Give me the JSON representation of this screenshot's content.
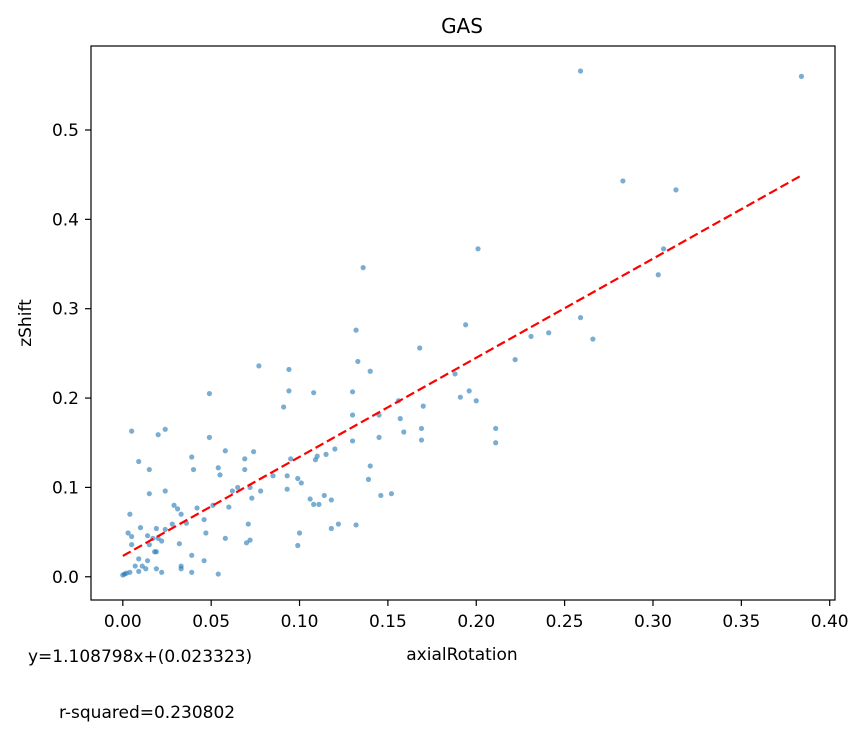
{
  "chart_data": {
    "type": "scatter",
    "title": "GAS",
    "xlabel": "axialRotation",
    "ylabel": "zShift",
    "xlim": [
      -0.018,
      0.403
    ],
    "ylim": [
      -0.026,
      0.594
    ],
    "xticks": [
      0.0,
      0.05,
      0.1,
      0.15,
      0.2,
      0.25,
      0.3,
      0.35,
      0.4
    ],
    "xtick_labels": [
      "0.00",
      "0.05",
      "0.10",
      "0.15",
      "0.20",
      "0.25",
      "0.30",
      "0.35",
      "0.40"
    ],
    "yticks": [
      0.0,
      0.1,
      0.2,
      0.3,
      0.4,
      0.5
    ],
    "ytick_labels": [
      "0.0",
      "0.1",
      "0.2",
      "0.3",
      "0.4",
      "0.5"
    ],
    "grid": false,
    "point_color": "#1f77b4",
    "fit_color": "#ff0000",
    "fit": {
      "slope": 1.108798,
      "intercept": 0.023323,
      "x_range": [
        0.0,
        0.384
      ],
      "equation": "y=1.108798x+(0.023323)",
      "r_squared": "r-squared=0.230802"
    },
    "points": [
      [
        0.259,
        0.566
      ],
      [
        0.384,
        0.56
      ],
      [
        0.283,
        0.443
      ],
      [
        0.313,
        0.433
      ],
      [
        0.201,
        0.367
      ],
      [
        0.306,
        0.367
      ],
      [
        0.136,
        0.346
      ],
      [
        0.303,
        0.338
      ],
      [
        0.194,
        0.282
      ],
      [
        0.132,
        0.276
      ],
      [
        0.259,
        0.29
      ],
      [
        0.266,
        0.266
      ],
      [
        0.231,
        0.269
      ],
      [
        0.241,
        0.273
      ],
      [
        0.168,
        0.256
      ],
      [
        0.222,
        0.243
      ],
      [
        0.133,
        0.241
      ],
      [
        0.077,
        0.236
      ],
      [
        0.094,
        0.232
      ],
      [
        0.14,
        0.23
      ],
      [
        0.188,
        0.227
      ],
      [
        0.049,
        0.205
      ],
      [
        0.094,
        0.208
      ],
      [
        0.108,
        0.206
      ],
      [
        0.13,
        0.207
      ],
      [
        0.196,
        0.208
      ],
      [
        0.191,
        0.201
      ],
      [
        0.2,
        0.197
      ],
      [
        0.156,
        0.197
      ],
      [
        0.091,
        0.19
      ],
      [
        0.17,
        0.191
      ],
      [
        0.145,
        0.181
      ],
      [
        0.13,
        0.181
      ],
      [
        0.157,
        0.177
      ],
      [
        0.024,
        0.165
      ],
      [
        0.005,
        0.163
      ],
      [
        0.02,
        0.159
      ],
      [
        0.049,
        0.156
      ],
      [
        0.169,
        0.166
      ],
      [
        0.159,
        0.162
      ],
      [
        0.211,
        0.166
      ],
      [
        0.13,
        0.152
      ],
      [
        0.145,
        0.156
      ],
      [
        0.169,
        0.153
      ],
      [
        0.211,
        0.15
      ],
      [
        0.058,
        0.141
      ],
      [
        0.074,
        0.14
      ],
      [
        0.12,
        0.143
      ],
      [
        0.039,
        0.134
      ],
      [
        0.009,
        0.129
      ],
      [
        0.069,
        0.132
      ],
      [
        0.095,
        0.132
      ],
      [
        0.11,
        0.135
      ],
      [
        0.115,
        0.137
      ],
      [
        0.109,
        0.131
      ],
      [
        0.04,
        0.12
      ],
      [
        0.015,
        0.12
      ],
      [
        0.054,
        0.122
      ],
      [
        0.069,
        0.12
      ],
      [
        0.14,
        0.124
      ],
      [
        0.055,
        0.114
      ],
      [
        0.085,
        0.113
      ],
      [
        0.099,
        0.11
      ],
      [
        0.093,
        0.113
      ],
      [
        0.139,
        0.109
      ],
      [
        0.065,
        0.1
      ],
      [
        0.072,
        0.1
      ],
      [
        0.078,
        0.096
      ],
      [
        0.093,
        0.098
      ],
      [
        0.101,
        0.105
      ],
      [
        0.062,
        0.096
      ],
      [
        0.015,
        0.093
      ],
      [
        0.024,
        0.096
      ],
      [
        0.106,
        0.087
      ],
      [
        0.118,
        0.086
      ],
      [
        0.146,
        0.091
      ],
      [
        0.152,
        0.093
      ],
      [
        0.029,
        0.08
      ],
      [
        0.042,
        0.077
      ],
      [
        0.051,
        0.08
      ],
      [
        0.073,
        0.088
      ],
      [
        0.108,
        0.081
      ],
      [
        0.111,
        0.081
      ],
      [
        0.114,
        0.091
      ],
      [
        0.004,
        0.07
      ],
      [
        0.031,
        0.076
      ],
      [
        0.033,
        0.07
      ],
      [
        0.06,
        0.078
      ],
      [
        0.046,
        0.064
      ],
      [
        0.01,
        0.055
      ],
      [
        0.019,
        0.054
      ],
      [
        0.024,
        0.053
      ],
      [
        0.028,
        0.059
      ],
      [
        0.036,
        0.06
      ],
      [
        0.071,
        0.059
      ],
      [
        0.122,
        0.059
      ],
      [
        0.118,
        0.054
      ],
      [
        0.132,
        0.058
      ],
      [
        0.1,
        0.049
      ],
      [
        0.003,
        0.049
      ],
      [
        0.005,
        0.045
      ],
      [
        0.014,
        0.046
      ],
      [
        0.017,
        0.043
      ],
      [
        0.02,
        0.043
      ],
      [
        0.022,
        0.04
      ],
      [
        0.032,
        0.037
      ],
      [
        0.047,
        0.049
      ],
      [
        0.058,
        0.043
      ],
      [
        0.07,
        0.038
      ],
      [
        0.072,
        0.041
      ],
      [
        0.005,
        0.036
      ],
      [
        0.015,
        0.036
      ],
      [
        0.018,
        0.028
      ],
      [
        0.019,
        0.028
      ],
      [
        0.039,
        0.024
      ],
      [
        0.099,
        0.035
      ],
      [
        0.009,
        0.02
      ],
      [
        0.014,
        0.018
      ],
      [
        0.046,
        0.018
      ],
      [
        0.011,
        0.012
      ],
      [
        0.007,
        0.012
      ],
      [
        0.033,
        0.012
      ],
      [
        0.033,
        0.009
      ],
      [
        0.019,
        0.009
      ],
      [
        0.002,
        0.004
      ],
      [
        0.004,
        0.005
      ],
      [
        0.009,
        0.006
      ],
      [
        0.013,
        0.009
      ],
      [
        0.022,
        0.005
      ],
      [
        0.039,
        0.005
      ],
      [
        0.054,
        0.003
      ],
      [
        0.001,
        0.003
      ],
      [
        0.0,
        0.002
      ]
    ]
  }
}
